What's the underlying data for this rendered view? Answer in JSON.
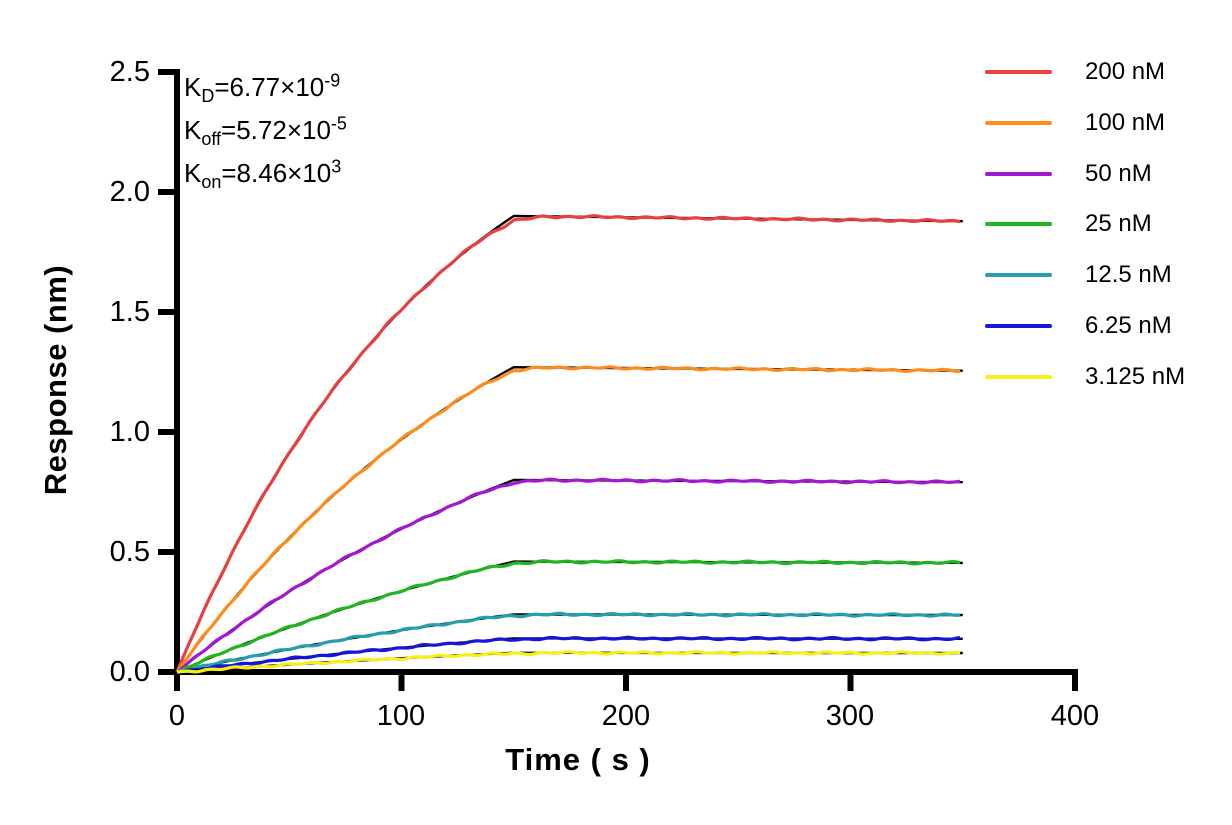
{
  "figure": {
    "background": "#ffffff",
    "text_color": "#000000"
  },
  "chart_data": {
    "type": "line",
    "title": "",
    "xlabel": "Time ( s )",
    "ylabel": "Response (nm)",
    "xlim": [
      0,
      400
    ],
    "ylim": [
      0,
      2.5
    ],
    "xticks": [
      "0",
      "100",
      "200",
      "300",
      "400"
    ],
    "yticks": [
      "0.0",
      "0.5",
      "1.0",
      "1.5",
      "2.0",
      "2.5"
    ],
    "x_tick_values": [
      0,
      100,
      200,
      300,
      400
    ],
    "y_tick_values": [
      0,
      0.5,
      1,
      1.5,
      2,
      2.5
    ],
    "grid": false,
    "legend_position": "right-outside",
    "association_end_s": 150,
    "trace_end_s": 350,
    "kinetics": {
      "lines": [
        {
          "base": "K",
          "sub": "D",
          "body": "=6.77×10",
          "exp": "-9"
        },
        {
          "base": "K",
          "sub": "off",
          "body": "=5.72×10",
          "exp": "-5"
        },
        {
          "base": "K",
          "sub": "on",
          "body": "=8.46×10",
          "exp": "3"
        }
      ]
    },
    "fit": {
      "color": "#000000",
      "koff_per_s": 5.72e-05,
      "kon_per_M_s": 8460,
      "kd_M": 6.77e-09
    },
    "series": [
      {
        "name": "200 nM",
        "concentration_nM": 200,
        "color": "#E8413D",
        "plateau_nm": 1.9,
        "k_obs": 0.0085
      },
      {
        "name": "100 nM",
        "concentration_nM": 100,
        "color": "#FF8C1A",
        "plateau_nm": 1.27,
        "k_obs": 0.0062
      },
      {
        "name": "50 nM",
        "concentration_nM": 50,
        "color": "#A318D4",
        "plateau_nm": 0.8,
        "k_obs": 0.005
      },
      {
        "name": "25 nM",
        "concentration_nM": 25,
        "color": "#22B522",
        "plateau_nm": 0.46,
        "k_obs": 0.0042
      },
      {
        "name": "12.5 nM",
        "concentration_nM": 12.5,
        "color": "#259FAE",
        "plateau_nm": 0.24,
        "k_obs": 0.0037
      },
      {
        "name": "6.25 nM",
        "concentration_nM": 6.25,
        "color": "#1715DB",
        "plateau_nm": 0.14,
        "k_obs": 0.0033
      },
      {
        "name": "3.125 nM",
        "concentration_nM": 3.125,
        "color": "#F7F017",
        "plateau_nm": 0.08,
        "k_obs": 0.003
      }
    ]
  }
}
